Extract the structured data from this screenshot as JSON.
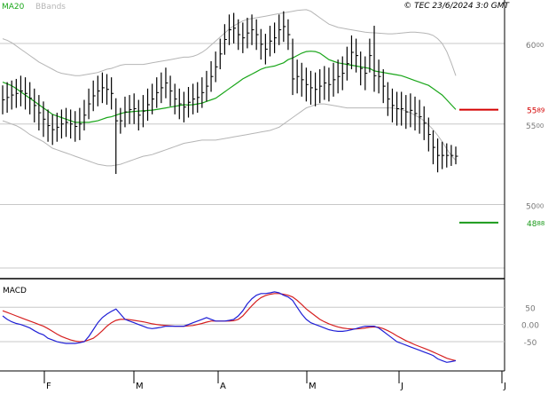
{
  "header": {
    "legend_ma": "MA20",
    "legend_bands": "BBands",
    "copyright": "© TEC 23/6/2024 3:0 GMT"
  },
  "colors": {
    "price_bars": "#000000",
    "ma20": "#1aa61a",
    "bbands": "#b5b5b5",
    "macd": "#1f1fd6",
    "signal": "#d62020",
    "resistance": "#d40000",
    "support": "#1a9a1a",
    "gridline": "#c8c8c8"
  },
  "chart_data": [
    {
      "type": "ohlc",
      "panel": "price",
      "x_tick_labels": [
        "F",
        "M",
        "A",
        "M",
        "J",
        "J"
      ],
      "y_tick_labels": [
        {
          "value": 6000,
          "text": "6000"
        },
        {
          "value": 5500,
          "text": "5500"
        },
        {
          "value": 5000,
          "text": "5000"
        }
      ],
      "ylim": [
        4540,
        6270
      ],
      "grid": true,
      "series": [
        {
          "name": "MA20",
          "values": [
            5760,
            5750,
            5738,
            5720,
            5700,
            5680,
            5660,
            5640,
            5620,
            5600,
            5580,
            5560,
            5550,
            5540,
            5530,
            5520,
            5510,
            5510,
            5510,
            5510,
            5515,
            5520,
            5530,
            5540,
            5545,
            5555,
            5565,
            5572,
            5575,
            5578,
            5580,
            5582,
            5584,
            5586,
            5590,
            5595,
            5600,
            5605,
            5610,
            5615,
            5620,
            5618,
            5620,
            5625,
            5630,
            5640,
            5650,
            5660,
            5680,
            5700,
            5720,
            5740,
            5760,
            5780,
            5795,
            5810,
            5825,
            5840,
            5850,
            5855,
            5860,
            5870,
            5880,
            5900,
            5910,
            5925,
            5940,
            5950,
            5952,
            5950,
            5940,
            5920,
            5900,
            5890,
            5880,
            5875,
            5870,
            5865,
            5860,
            5855,
            5850,
            5845,
            5830,
            5825,
            5820,
            5815,
            5810,
            5805,
            5800,
            5790,
            5780,
            5770,
            5760,
            5750,
            5740,
            5720,
            5700,
            5680,
            5650,
            5620,
            5590
          ]
        },
        {
          "name": "BBands upper",
          "values": [
            6030,
            6020,
            6005,
            5985,
            5965,
            5945,
            5925,
            5905,
            5885,
            5870,
            5855,
            5840,
            5825,
            5815,
            5810,
            5805,
            5800,
            5800,
            5805,
            5810,
            5815,
            5820,
            5830,
            5840,
            5845,
            5855,
            5865,
            5870,
            5870,
            5870,
            5870,
            5870,
            5875,
            5880,
            5885,
            5890,
            5895,
            5900,
            5905,
            5910,
            5915,
            5915,
            5920,
            5930,
            5945,
            5965,
            5990,
            6015,
            6040,
            6065,
            6090,
            6110,
            6125,
            6140,
            6150,
            6155,
            6160,
            6165,
            6170,
            6175,
            6180,
            6185,
            6190,
            6195,
            6200,
            6205,
            6208,
            6210,
            6200,
            6180,
            6160,
            6140,
            6120,
            6110,
            6100,
            6095,
            6090,
            6085,
            6080,
            6075,
            6070,
            6068,
            6066,
            6064,
            6062,
            6060,
            6060,
            6062,
            6065,
            6068,
            6070,
            6070,
            6068,
            6065,
            6060,
            6050,
            6030,
            6000,
            5950,
            5880,
            5800
          ]
        },
        {
          "name": "BBands lower",
          "values": [
            5520,
            5510,
            5500,
            5490,
            5475,
            5455,
            5435,
            5420,
            5405,
            5390,
            5370,
            5350,
            5340,
            5330,
            5320,
            5310,
            5300,
            5290,
            5280,
            5270,
            5260,
            5250,
            5245,
            5240,
            5240,
            5245,
            5250,
            5260,
            5270,
            5280,
            5290,
            5300,
            5305,
            5310,
            5320,
            5330,
            5340,
            5350,
            5360,
            5370,
            5380,
            5385,
            5390,
            5395,
            5400,
            5400,
            5400,
            5400,
            5405,
            5410,
            5415,
            5420,
            5425,
            5430,
            5435,
            5440,
            5445,
            5450,
            5455,
            5460,
            5470,
            5480,
            5500,
            5520,
            5540,
            5560,
            5580,
            5600,
            5610,
            5620,
            5625,
            5625,
            5620,
            5615,
            5610,
            5605,
            5600,
            5600,
            5600,
            5600,
            5600,
            5600,
            5600,
            5600,
            5600,
            5600,
            5600,
            5595,
            5590,
            5580,
            5570,
            5555,
            5540,
            5520,
            5495,
            5465,
            5430,
            5390,
            5345,
            5305,
            5275
          ]
        }
      ],
      "bars_high": [
        5740,
        5760,
        5770,
        5780,
        5800,
        5790,
        5760,
        5720,
        5680,
        5640,
        5590,
        5560,
        5570,
        5590,
        5600,
        5590,
        5580,
        5600,
        5650,
        5720,
        5770,
        5800,
        5820,
        5810,
        5790,
        5660,
        5600,
        5670,
        5680,
        5690,
        5650,
        5680,
        5720,
        5750,
        5790,
        5820,
        5850,
        5800,
        5750,
        5720,
        5700,
        5730,
        5750,
        5760,
        5790,
        5830,
        5890,
        5950,
        6030,
        6120,
        6180,
        6190,
        6150,
        6130,
        6160,
        6180,
        6150,
        6090,
        6060,
        6110,
        6130,
        6180,
        6200,
        6150,
        6030,
        5900,
        5880,
        5850,
        5830,
        5820,
        5840,
        5860,
        5850,
        5880,
        5900,
        5920,
        5980,
        6050,
        6030,
        5950,
        5920,
        6030,
        6110,
        5900,
        5840,
        5760,
        5720,
        5700,
        5700,
        5680,
        5690,
        5670,
        5650,
        5610,
        5540,
        5460,
        5410,
        5390,
        5380,
        5370,
        5360
      ],
      "bars_low": [
        5560,
        5570,
        5590,
        5600,
        5610,
        5590,
        5560,
        5510,
        5460,
        5420,
        5390,
        5370,
        5390,
        5410,
        5420,
        5410,
        5390,
        5400,
        5460,
        5530,
        5580,
        5610,
        5630,
        5620,
        5590,
        5190,
        5440,
        5480,
        5500,
        5500,
        5460,
        5480,
        5520,
        5560,
        5600,
        5630,
        5660,
        5610,
        5560,
        5530,
        5510,
        5540,
        5560,
        5570,
        5600,
        5640,
        5700,
        5760,
        5840,
        5930,
        5990,
        6000,
        5960,
        5940,
        5970,
        5990,
        5960,
        5900,
        5870,
        5920,
        5940,
        5990,
        6010,
        5960,
        5680,
        5690,
        5670,
        5640,
        5620,
        5610,
        5630,
        5650,
        5640,
        5670,
        5690,
        5710,
        5770,
        5840,
        5820,
        5740,
        5710,
        5820,
        5700,
        5690,
        5630,
        5550,
        5510,
        5490,
        5490,
        5470,
        5480,
        5460,
        5440,
        5400,
        5330,
        5250,
        5200,
        5220,
        5230,
        5240,
        5250
      ],
      "bars_close": [
        5650,
        5665,
        5680,
        5690,
        5705,
        5690,
        5660,
        5615,
        5570,
        5530,
        5490,
        5465,
        5480,
        5500,
        5510,
        5500,
        5485,
        5500,
        5555,
        5625,
        5675,
        5705,
        5725,
        5715,
        5690,
        5520,
        5520,
        5575,
        5590,
        5595,
        5555,
        5580,
        5620,
        5655,
        5695,
        5725,
        5755,
        5705,
        5655,
        5625,
        5605,
        5635,
        5655,
        5665,
        5695,
        5735,
        5795,
        5855,
        5935,
        6025,
        6085,
        6095,
        6055,
        6035,
        6065,
        6085,
        6055,
        5995,
        5965,
        6015,
        6035,
        6085,
        6105,
        6055,
        5780,
        5795,
        5775,
        5745,
        5725,
        5715,
        5735,
        5755,
        5745,
        5775,
        5795,
        5815,
        5875,
        5945,
        5925,
        5845,
        5815,
        5925,
        5800,
        5795,
        5735,
        5655,
        5615,
        5595,
        5595,
        5575,
        5585,
        5565,
        5545,
        5505,
        5435,
        5355,
        5305,
        5305,
        5305,
        5305,
        5300
      ],
      "resistance": {
        "value": 5589,
        "label_main": "55",
        "label_sup": "89"
      },
      "support": {
        "value": 4888,
        "label_main": "48",
        "label_sup": "88"
      }
    },
    {
      "type": "line",
      "panel": "macd",
      "title": "MACD",
      "x_tick_labels": [
        "F",
        "M",
        "A",
        "M",
        "J",
        "J"
      ],
      "y_tick_labels": [
        {
          "value": 50,
          "text": "50"
        },
        {
          "value": 0,
          "text": "0.00"
        },
        {
          "value": -50,
          "text": "-50"
        }
      ],
      "ylim": [
        -135,
        123
      ],
      "grid": true,
      "series": [
        {
          "name": "MACD",
          "values": [
            25,
            15,
            8,
            3,
            0,
            -5,
            -10,
            -18,
            -25,
            -30,
            -40,
            -45,
            -50,
            -53,
            -55,
            -55,
            -55,
            -53,
            -50,
            -35,
            -15,
            5,
            20,
            30,
            38,
            45,
            30,
            15,
            10,
            5,
            0,
            -5,
            -10,
            -12,
            -10,
            -8,
            -5,
            -5,
            -5,
            -5,
            -5,
            0,
            5,
            10,
            15,
            20,
            15,
            10,
            10,
            10,
            12,
            15,
            25,
            40,
            60,
            75,
            85,
            90,
            90,
            92,
            95,
            92,
            85,
            80,
            70,
            50,
            30,
            15,
            5,
            0,
            -5,
            -10,
            -15,
            -18,
            -20,
            -20,
            -18,
            -15,
            -12,
            -8,
            -5,
            -5,
            -5,
            -10,
            -20,
            -30,
            -40,
            -50,
            -55,
            -60,
            -65,
            -70,
            -75,
            -80,
            -85,
            -90,
            -100,
            -105,
            -110,
            -108,
            -105
          ]
        },
        {
          "name": "Signal",
          "values": [
            40,
            35,
            30,
            25,
            20,
            15,
            10,
            5,
            0,
            -5,
            -12,
            -20,
            -28,
            -35,
            -40,
            -45,
            -48,
            -50,
            -49,
            -45,
            -40,
            -30,
            -18,
            -5,
            5,
            12,
            15,
            15,
            14,
            12,
            10,
            8,
            5,
            2,
            0,
            -2,
            -3,
            -4,
            -5,
            -5,
            -5,
            -4,
            -3,
            0,
            3,
            7,
            10,
            10,
            10,
            10,
            10,
            11,
            15,
            25,
            40,
            55,
            68,
            78,
            84,
            88,
            90,
            90,
            88,
            85,
            80,
            70,
            58,
            45,
            35,
            25,
            15,
            8,
            2,
            -3,
            -7,
            -10,
            -12,
            -13,
            -13,
            -12,
            -10,
            -8,
            -7,
            -8,
            -12,
            -18,
            -25,
            -33,
            -40,
            -47,
            -53,
            -59,
            -64,
            -69,
            -74,
            -80,
            -86,
            -92,
            -98,
            -102,
            -105
          ]
        }
      ]
    }
  ]
}
